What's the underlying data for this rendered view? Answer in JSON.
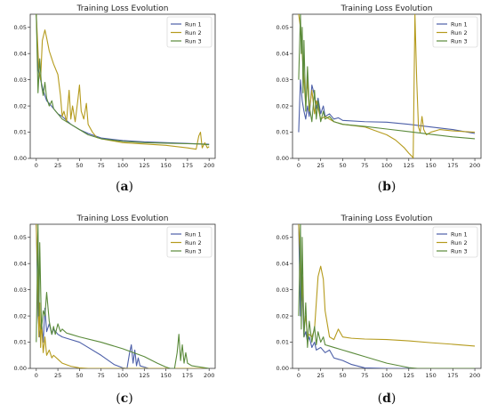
{
  "chart_data": [
    {
      "type": "line",
      "title": "Training Loss Evolution",
      "caption": "(a)",
      "caption_letter": "a",
      "xlabel": "",
      "ylabel": "",
      "xlim": [
        -7,
        207
      ],
      "ylim": [
        0,
        0.055
      ],
      "xticks": [
        "0",
        "25",
        "50",
        "75",
        "100",
        "125",
        "150",
        "175",
        "200"
      ],
      "yticks": [
        "0.00",
        "0.01",
        "0.02",
        "0.03",
        "0.04",
        "0.05"
      ],
      "legend": "top-right",
      "series": [
        {
          "name": "Run 1",
          "color": "#4C5FA8",
          "x": [
            0,
            2,
            5,
            8,
            10,
            12,
            15,
            20,
            25,
            30,
            40,
            50,
            60,
            75,
            100,
            125,
            150,
            175,
            190,
            200
          ],
          "y": [
            0.055,
            0.034,
            0.03,
            0.026,
            0.024,
            0.022,
            0.021,
            0.019,
            0.017,
            0.016,
            0.013,
            0.011,
            0.0095,
            0.0078,
            0.0068,
            0.0063,
            0.006,
            0.0057,
            0.0055,
            0.0054
          ]
        },
        {
          "name": "Run 2",
          "color": "#B59B1D",
          "x": [
            0,
            3,
            5,
            7,
            10,
            12,
            15,
            18,
            20,
            25,
            28,
            30,
            32,
            35,
            38,
            40,
            42,
            45,
            48,
            50,
            52,
            55,
            58,
            60,
            65,
            70,
            75,
            100,
            125,
            150,
            175,
            185,
            188,
            190,
            192,
            195,
            198,
            200
          ],
          "y": [
            0.055,
            0.034,
            0.03,
            0.045,
            0.049,
            0.046,
            0.041,
            0.038,
            0.036,
            0.032,
            0.024,
            0.016,
            0.018,
            0.014,
            0.026,
            0.015,
            0.02,
            0.014,
            0.022,
            0.028,
            0.018,
            0.015,
            0.021,
            0.013,
            0.01,
            0.008,
            0.0075,
            0.006,
            0.0055,
            0.005,
            0.004,
            0.0035,
            0.0085,
            0.01,
            0.004,
            0.006,
            0.004,
            0.0045
          ]
        },
        {
          "name": "Run 3",
          "color": "#5A8A3A",
          "x": [
            0,
            2,
            4,
            6,
            8,
            10,
            12,
            15,
            18,
            20,
            25,
            30,
            40,
            50,
            60,
            75,
            100,
            125,
            150,
            175,
            190,
            200
          ],
          "y": [
            0.055,
            0.025,
            0.038,
            0.028,
            0.024,
            0.029,
            0.023,
            0.02,
            0.022,
            0.019,
            0.017,
            0.015,
            0.013,
            0.011,
            0.009,
            0.0075,
            0.0065,
            0.006,
            0.0058,
            0.0056,
            0.0055,
            0.0052
          ]
        }
      ]
    },
    {
      "type": "line",
      "title": "Training Loss Evolution",
      "caption": "(b)",
      "caption_letter": "b",
      "xlabel": "",
      "ylabel": "",
      "xlim": [
        -7,
        207
      ],
      "ylim": [
        0,
        0.055
      ],
      "xticks": [
        "0",
        "25",
        "50",
        "75",
        "100",
        "125",
        "150",
        "175",
        "200"
      ],
      "yticks": [
        "0.00",
        "0.01",
        "0.02",
        "0.03",
        "0.04",
        "0.05"
      ],
      "legend": "top-right",
      "series": [
        {
          "name": "Run 1",
          "color": "#4C5FA8",
          "x": [
            0,
            2,
            4,
            6,
            8,
            10,
            12,
            15,
            18,
            20,
            22,
            25,
            28,
            30,
            35,
            40,
            45,
            50,
            75,
            100,
            125,
            150,
            175,
            200
          ],
          "y": [
            0.01,
            0.03,
            0.022,
            0.018,
            0.015,
            0.02,
            0.016,
            0.028,
            0.024,
            0.019,
            0.023,
            0.017,
            0.02,
            0.016,
            0.017,
            0.015,
            0.0155,
            0.0145,
            0.014,
            0.0138,
            0.013,
            0.012,
            0.011,
            0.0095
          ]
        },
        {
          "name": "Run 2",
          "color": "#B59B1D",
          "x": [
            0,
            2,
            4,
            6,
            8,
            10,
            12,
            15,
            18,
            20,
            25,
            30,
            40,
            50,
            75,
            100,
            110,
            120,
            125,
            128,
            130,
            132,
            134,
            136,
            138,
            140,
            142,
            145,
            150,
            160,
            175,
            200
          ],
          "y": [
            0.055,
            0.05,
            0.04,
            0.03,
            0.02,
            0.03,
            0.018,
            0.026,
            0.017,
            0.022,
            0.015,
            0.016,
            0.014,
            0.013,
            0.012,
            0.009,
            0.007,
            0.004,
            0.002,
            0.001,
            0.0002,
            0.055,
            0.03,
            0.012,
            0.01,
            0.016,
            0.011,
            0.009,
            0.01,
            0.011,
            0.0105,
            0.01
          ]
        },
        {
          "name": "Run 3",
          "color": "#5A8A3A",
          "x": [
            0,
            2,
            3,
            4,
            5,
            6,
            8,
            10,
            12,
            15,
            18,
            20,
            22,
            25,
            28,
            30,
            35,
            40,
            50,
            75,
            100,
            125,
            150,
            175,
            200
          ],
          "y": [
            0.03,
            0.055,
            0.04,
            0.05,
            0.025,
            0.045,
            0.018,
            0.035,
            0.02,
            0.014,
            0.026,
            0.015,
            0.022,
            0.014,
            0.018,
            0.015,
            0.016,
            0.014,
            0.013,
            0.0122,
            0.0112,
            0.0102,
            0.0092,
            0.0082,
            0.0075
          ]
        }
      ]
    },
    {
      "type": "line",
      "title": "Training Loss Evolution",
      "caption": "(c)",
      "caption_letter": "c",
      "xlabel": "",
      "ylabel": "",
      "xlim": [
        -7,
        207
      ],
      "ylim": [
        0,
        0.055
      ],
      "xticks": [
        "0",
        "25",
        "50",
        "75",
        "100",
        "125",
        "150",
        "175",
        "200"
      ],
      "yticks": [
        "0.00",
        "0.01",
        "0.02",
        "0.03",
        "0.04",
        "0.05"
      ],
      "legend": "top-right",
      "series": [
        {
          "name": "Run 1",
          "color": "#4C5FA8",
          "x": [
            0,
            2,
            4,
            6,
            8,
            10,
            12,
            15,
            18,
            20,
            25,
            30,
            40,
            50,
            60,
            75,
            90,
            100,
            105,
            108,
            110,
            112,
            114,
            116,
            118,
            120,
            125,
            130,
            200
          ],
          "y": [
            0.055,
            0.02,
            0.012,
            0.018,
            0.01,
            0.023,
            0.014,
            0.017,
            0.013,
            0.015,
            0.013,
            0.012,
            0.011,
            0.01,
            0.008,
            0.005,
            0.0015,
            0.0002,
            0.0,
            0.006,
            0.009,
            0.002,
            0.007,
            0.001,
            0.004,
            0.001,
            0.0005,
            0.0,
            0.0
          ]
        },
        {
          "name": "Run 2",
          "color": "#B59B1D",
          "x": [
            0,
            2,
            3,
            4,
            5,
            6,
            8,
            10,
            12,
            15,
            18,
            20,
            25,
            30,
            40,
            50,
            60,
            75,
            100,
            200
          ],
          "y": [
            0.055,
            0.03,
            0.012,
            0.025,
            0.008,
            0.018,
            0.006,
            0.012,
            0.005,
            0.007,
            0.004,
            0.005,
            0.0035,
            0.002,
            0.0008,
            0.0002,
            0.0,
            0.0,
            0.0,
            0.0
          ]
        },
        {
          "name": "Run 3",
          "color": "#5A8A3A",
          "x": [
            0,
            2,
            3,
            4,
            6,
            8,
            10,
            12,
            15,
            18,
            20,
            22,
            25,
            28,
            30,
            35,
            40,
            50,
            75,
            100,
            125,
            140,
            150,
            155,
            160,
            163,
            165,
            167,
            169,
            171,
            173,
            175,
            180,
            200
          ],
          "y": [
            0.01,
            0.055,
            0.02,
            0.048,
            0.015,
            0.022,
            0.02,
            0.029,
            0.018,
            0.013,
            0.016,
            0.013,
            0.017,
            0.014,
            0.015,
            0.0135,
            0.013,
            0.012,
            0.01,
            0.0075,
            0.0045,
            0.002,
            0.0005,
            0.0,
            0.0,
            0.006,
            0.013,
            0.003,
            0.009,
            0.002,
            0.006,
            0.002,
            0.001,
            0.0
          ]
        }
      ]
    },
    {
      "type": "line",
      "title": "Training Loss Evolution",
      "caption": "(d)",
      "caption_letter": "d",
      "xlabel": "",
      "ylabel": "",
      "xlim": [
        -7,
        207
      ],
      "ylim": [
        0,
        0.055
      ],
      "xticks": [
        "0",
        "25",
        "50",
        "75",
        "100",
        "125",
        "150",
        "175",
        "200"
      ],
      "yticks": [
        "0.00",
        "0.01",
        "0.02",
        "0.03",
        "0.04",
        "0.05"
      ],
      "legend": "top-right",
      "series": [
        {
          "name": "Run 1",
          "color": "#4C5FA8",
          "x": [
            0,
            2,
            4,
            6,
            8,
            10,
            12,
            15,
            18,
            20,
            25,
            30,
            35,
            40,
            50,
            60,
            75,
            100,
            200
          ],
          "y": [
            0.055,
            0.02,
            0.03,
            0.012,
            0.014,
            0.01,
            0.012,
            0.008,
            0.01,
            0.007,
            0.008,
            0.006,
            0.007,
            0.004,
            0.003,
            0.0015,
            0.0002,
            0.0,
            0.0
          ]
        },
        {
          "name": "Run 2",
          "color": "#B59B1D",
          "x": [
            0,
            2,
            3,
            4,
            6,
            8,
            10,
            12,
            15,
            18,
            20,
            22,
            25,
            28,
            30,
            35,
            40,
            45,
            50,
            60,
            75,
            100,
            125,
            150,
            175,
            200
          ],
          "y": [
            0.055,
            0.04,
            0.025,
            0.035,
            0.015,
            0.02,
            0.012,
            0.013,
            0.012,
            0.015,
            0.025,
            0.035,
            0.039,
            0.034,
            0.022,
            0.012,
            0.011,
            0.015,
            0.012,
            0.0115,
            0.0112,
            0.011,
            0.0105,
            0.0098,
            0.0092,
            0.0085
          ]
        },
        {
          "name": "Run 3",
          "color": "#5A8A3A",
          "x": [
            0,
            2,
            3,
            4,
            6,
            8,
            10,
            12,
            15,
            18,
            20,
            22,
            25,
            28,
            30,
            35,
            40,
            50,
            60,
            75,
            100,
            125,
            135,
            200
          ],
          "y": [
            0.02,
            0.055,
            0.015,
            0.05,
            0.012,
            0.025,
            0.008,
            0.018,
            0.01,
            0.016,
            0.009,
            0.014,
            0.01,
            0.012,
            0.009,
            0.0085,
            0.008,
            0.007,
            0.006,
            0.0045,
            0.002,
            0.0003,
            0.0,
            0.0
          ]
        }
      ]
    }
  ]
}
